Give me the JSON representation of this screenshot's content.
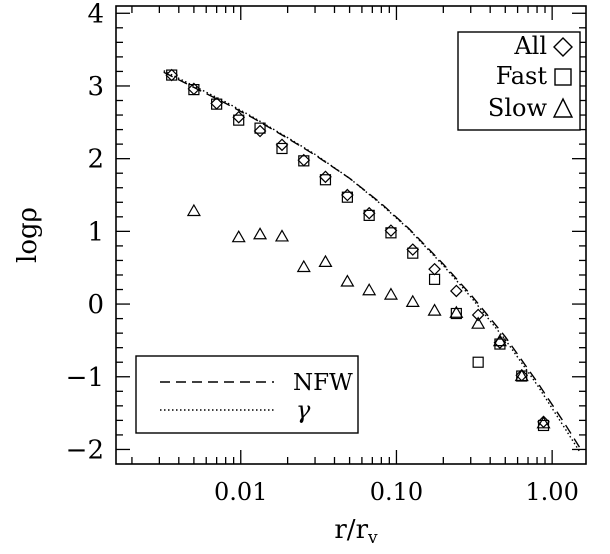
{
  "chart_data": {
    "type": "scatter",
    "xlabel": "r/r",
    "xlabel_sub": "v",
    "ylabel": "logρ",
    "xscale": "log",
    "xlim": [
      0.00158,
      1.65
    ],
    "ylim": [
      -2.2,
      4.1
    ],
    "xticks": [
      {
        "value": 0.01,
        "label": "0.01"
      },
      {
        "value": 0.1,
        "label": "0.10"
      },
      {
        "value": 1.0,
        "label": "1.00"
      }
    ],
    "yticks": [
      {
        "value": -2,
        "label": "−2"
      },
      {
        "value": -1,
        "label": "−1"
      },
      {
        "value": 0,
        "label": "0"
      },
      {
        "value": 1,
        "label": "1"
      },
      {
        "value": 2,
        "label": "2"
      },
      {
        "value": 3,
        "label": "3"
      },
      {
        "value": 4,
        "label": "4"
      }
    ],
    "grid": false,
    "series": [
      {
        "name": "All",
        "marker": "diamond",
        "x": [
          0.0036,
          0.005,
          0.007,
          0.0097,
          0.0133,
          0.0184,
          0.0254,
          0.035,
          0.0484,
          0.0668,
          0.0922,
          0.1273,
          0.1757,
          0.2425,
          0.3348,
          0.462,
          0.6378,
          0.8803
        ],
        "y": [
          3.15,
          2.96,
          2.76,
          2.57,
          2.38,
          2.19,
          1.98,
          1.75,
          1.5,
          1.25,
          1.01,
          0.75,
          0.48,
          0.18,
          -0.15,
          -0.53,
          -0.98,
          -1.62
        ]
      },
      {
        "name": "Fast",
        "marker": "square",
        "x": [
          0.0036,
          0.005,
          0.007,
          0.0097,
          0.0133,
          0.0184,
          0.0254,
          0.035,
          0.0484,
          0.0668,
          0.0922,
          0.1273,
          0.1757,
          0.2425,
          0.3348,
          0.462,
          0.6378,
          0.8803
        ],
        "y": [
          3.15,
          2.95,
          2.75,
          2.53,
          2.42,
          2.14,
          1.97,
          1.71,
          1.47,
          1.22,
          0.98,
          0.7,
          0.34,
          -0.13,
          -0.8,
          -0.55,
          -0.99,
          -1.67
        ]
      },
      {
        "name": "Slow",
        "marker": "triangle",
        "x": [
          0.005,
          0.0097,
          0.0133,
          0.0184,
          0.0254,
          0.035,
          0.0484,
          0.0668,
          0.0922,
          0.1273,
          0.1757,
          0.2425,
          0.3348,
          0.462,
          0.6378,
          0.8803
        ],
        "y": [
          1.28,
          0.92,
          0.96,
          0.93,
          0.51,
          0.58,
          0.31,
          0.19,
          0.13,
          0.03,
          -0.09,
          -0.12,
          -0.27,
          -0.51,
          -0.99,
          -1.64
        ]
      }
    ],
    "curves": [
      {
        "name": "NFW",
        "style": "dashed",
        "x": [
          0.0032,
          0.005,
          0.008,
          0.012,
          0.02,
          0.03,
          0.05,
          0.08,
          0.12,
          0.2,
          0.3,
          0.5,
          0.8,
          1.2,
          1.5
        ],
        "y": [
          3.19,
          2.98,
          2.76,
          2.56,
          2.28,
          2.05,
          1.73,
          1.38,
          1.04,
          0.55,
          0.13,
          -0.45,
          -1.07,
          -1.64,
          -1.97
        ]
      },
      {
        "name": "γ",
        "style": "dotted",
        "x": [
          0.0032,
          0.005,
          0.008,
          0.012,
          0.02,
          0.03,
          0.05,
          0.08,
          0.12,
          0.2,
          0.3,
          0.5,
          0.8,
          1.2,
          1.5
        ],
        "y": [
          3.21,
          3.0,
          2.78,
          2.57,
          2.29,
          2.06,
          1.73,
          1.37,
          1.03,
          0.53,
          0.1,
          -0.49,
          -1.11,
          -1.7,
          -2.03
        ]
      }
    ],
    "legends": [
      {
        "position": "top-right",
        "entries": [
          {
            "label": "All",
            "marker": "diamond"
          },
          {
            "label": "Fast",
            "marker": "square"
          },
          {
            "label": "Slow",
            "marker": "triangle"
          }
        ]
      },
      {
        "position": "bottom-left",
        "entries": [
          {
            "label": "NFW",
            "line": "dashed"
          },
          {
            "label": "γ",
            "line": "dotted"
          }
        ]
      }
    ]
  }
}
